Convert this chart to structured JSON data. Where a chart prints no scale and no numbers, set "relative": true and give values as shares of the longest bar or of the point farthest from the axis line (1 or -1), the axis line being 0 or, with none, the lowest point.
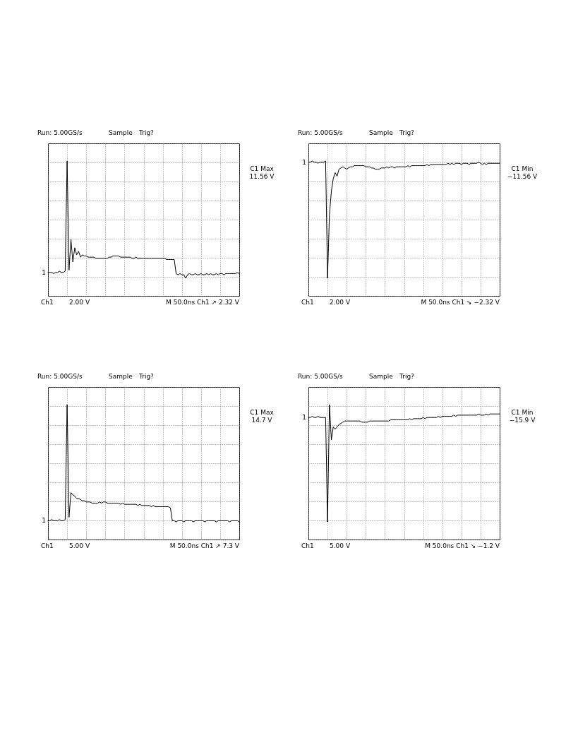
{
  "chart_data": [
    {
      "type": "line",
      "title": "Run: 5.00GS/s",
      "relative": true,
      "grid": true,
      "annotations": [
        "Sample",
        "Trig?",
        "Ch1",
        "2.00 V",
        "M 50.0ns Ch1 ↗ 2.32 V",
        "C1 Max",
        "11.56 V",
        "1"
      ],
      "categories": [
        null,
        null,
        null,
        null,
        null,
        null,
        null,
        null,
        null,
        null,
        null,
        null,
        null,
        null,
        null,
        null,
        null,
        null,
        null,
        null,
        null,
        null,
        null,
        null,
        null,
        null,
        null,
        null,
        null,
        null,
        null,
        null,
        null,
        null,
        null,
        null,
        null,
        null,
        null,
        null,
        null,
        null,
        null,
        null,
        null,
        null,
        null,
        null,
        null,
        null,
        null,
        null,
        null,
        null,
        null,
        null,
        null,
        null,
        null,
        null,
        null,
        null,
        null,
        null,
        null,
        null,
        null,
        null,
        null,
        null,
        null,
        null,
        null,
        null,
        null,
        null,
        null,
        null,
        null,
        null,
        null,
        null,
        null,
        null,
        null,
        null,
        null,
        null,
        null,
        null,
        null,
        null,
        null,
        null,
        null,
        null,
        null,
        null,
        null,
        null,
        null
      ],
      "series": [
        {
          "color": "#000000",
          "values": [
            0.05,
            0.05,
            0.05,
            0.04,
            0.05,
            0.05,
            0.06,
            0.05,
            0.05,
            0.06,
            1,
            0.07,
            0.33,
            0.14,
            0.26,
            0.2,
            0.23,
            0.18,
            0.2,
            0.19,
            0.19,
            0.18,
            0.18,
            0.18,
            0.18,
            0.17,
            0.17,
            0.17,
            0.17,
            0.17,
            0.17,
            0.17,
            0.18,
            0.18,
            0.19,
            0.19,
            0.19,
            0.19,
            0.18,
            0.18,
            0.18,
            0.18,
            0.18,
            0.18,
            0.17,
            0.17,
            0.18,
            0.17,
            0.17,
            0.17,
            0.17,
            0.17,
            0.17,
            0.17,
            0.17,
            0.17,
            0.17,
            0.17,
            0.17,
            0.17,
            0.17,
            0.17,
            0.16,
            0.16,
            0.16,
            0.16,
            0.16,
            0.04,
            0.03,
            0.04,
            0.03,
            0.03,
            0,
            0.03,
            0.04,
            0.03,
            0.03,
            0.04,
            0.03,
            0.03,
            0.04,
            0.03,
            0.03,
            0.04,
            0.03,
            0.04,
            0.03,
            0.03,
            0.04,
            0.03,
            0.04,
            0.04,
            0.03,
            0.04,
            0.04,
            0.04,
            0.04,
            0.04,
            0.04,
            0.05,
            0.04
          ]
        }
      ]
    },
    {
      "type": "line",
      "title": "Run: 5.00GS/s",
      "relative": true,
      "grid": true,
      "annotations": [
        "Sample",
        "Trig?",
        "Ch1",
        "2.00 V",
        "M 50.0ns Ch1 ↘ −2.32 V",
        "C1 Min",
        "−11.56 V",
        "1"
      ],
      "categories": [
        null,
        null,
        null,
        null,
        null,
        null,
        null,
        null,
        null,
        null,
        null,
        null,
        null,
        null,
        null,
        null,
        null,
        null,
        null,
        null,
        null,
        null,
        null,
        null,
        null,
        null,
        null,
        null,
        null,
        null,
        null,
        null,
        null,
        null,
        null,
        null,
        null,
        null,
        null,
        null,
        null,
        null,
        null,
        null,
        null,
        null,
        null,
        null,
        null,
        null,
        null,
        null,
        null,
        null,
        null,
        null,
        null,
        null,
        null,
        null,
        null,
        null,
        null,
        null,
        null,
        null,
        null,
        null,
        null,
        null,
        null,
        null,
        null,
        null,
        null,
        null,
        null,
        null,
        null,
        null,
        null,
        null,
        null,
        null,
        null,
        null,
        null,
        null,
        null,
        null,
        null,
        null,
        null,
        null,
        null,
        null,
        null,
        null,
        null,
        null,
        null
      ],
      "series": [
        {
          "color": "#000000",
          "values": [
            0.99,
            0.99,
            1,
            0.99,
            0.99,
            0.98,
            0.99,
            0.99,
            0.99,
            1,
            0,
            0.54,
            0.74,
            0.85,
            0.9,
            0.87,
            0.93,
            0.94,
            0.95,
            0.94,
            0.93,
            0.94,
            0.95,
            0.95,
            0.96,
            0.96,
            0.96,
            0.96,
            0.96,
            0.96,
            0.95,
            0.95,
            0.95,
            0.94,
            0.94,
            0.93,
            0.93,
            0.93,
            0.94,
            0.94,
            0.94,
            0.95,
            0.94,
            0.95,
            0.95,
            0.94,
            0.95,
            0.95,
            0.95,
            0.95,
            0.95,
            0.95,
            0.96,
            0.95,
            0.96,
            0.96,
            0.96,
            0.96,
            0.96,
            0.96,
            0.96,
            0.96,
            0.97,
            0.96,
            0.97,
            0.97,
            0.97,
            0.97,
            0.97,
            0.97,
            0.97,
            0.97,
            0.97,
            0.98,
            0.97,
            0.98,
            0.97,
            0.98,
            0.98,
            0.98,
            0.97,
            0.98,
            0.98,
            0.98,
            0.97,
            0.98,
            0.98,
            0.98,
            0.98,
            0.99,
            0.98,
            0.97,
            0.98,
            0.97,
            0.98,
            0.98,
            0.98,
            0.98,
            0.98,
            0.98,
            0.98
          ]
        }
      ]
    },
    {
      "type": "line",
      "title": "Run: 5.00GS/s",
      "relative": true,
      "grid": true,
      "annotations": [
        "Sample",
        "Trig?",
        "Ch1",
        "5.00 V",
        "M 50.0ns Ch1 ↗ 7.3 V",
        "C1 Max",
        "14.7 V",
        "1"
      ],
      "categories": [
        null,
        null,
        null,
        null,
        null,
        null,
        null,
        null,
        null,
        null,
        null,
        null,
        null,
        null,
        null,
        null,
        null,
        null,
        null,
        null,
        null,
        null,
        null,
        null,
        null,
        null,
        null,
        null,
        null,
        null,
        null,
        null,
        null,
        null,
        null,
        null,
        null,
        null,
        null,
        null,
        null,
        null,
        null,
        null,
        null,
        null,
        null,
        null,
        null,
        null,
        null,
        null,
        null,
        null,
        null,
        null,
        null,
        null,
        null,
        null,
        null,
        null,
        null,
        null,
        null,
        null,
        null,
        null,
        null,
        null,
        null,
        null,
        null,
        null,
        null,
        null,
        null,
        null,
        null,
        null,
        null,
        null,
        null,
        null,
        null,
        null,
        null,
        null,
        null,
        null,
        null,
        null,
        null,
        null,
        null,
        null,
        null,
        null,
        null,
        null,
        null
      ],
      "series": [
        {
          "color": "#000000",
          "values": [
            0.01,
            0.01,
            0.02,
            0.01,
            0.01,
            0.01,
            0.02,
            0.01,
            0.01,
            0.02,
            1,
            0.04,
            0.25,
            0.23,
            0.22,
            0.2,
            0.2,
            0.19,
            0.18,
            0.18,
            0.17,
            0.17,
            0.17,
            0.16,
            0.16,
            0.16,
            0.16,
            0.17,
            0.16,
            0.17,
            0.17,
            0.16,
            0.16,
            0.16,
            0.16,
            0.16,
            0.16,
            0.16,
            0.15,
            0.16,
            0.15,
            0.15,
            0.15,
            0.15,
            0.15,
            0.15,
            0.15,
            0.14,
            0.15,
            0.14,
            0.14,
            0.14,
            0.14,
            0.14,
            0.13,
            0.14,
            0.13,
            0.13,
            0.13,
            0.13,
            0.13,
            0.13,
            0.13,
            0.13,
            0.12,
            0.01,
            0.01,
            0,
            0.01,
            0.01,
            0.01,
            0,
            0.01,
            0.01,
            0.01,
            0.01,
            0,
            0.01,
            0.01,
            0.01,
            0.01,
            0.01,
            0,
            0.01,
            0.01,
            0.01,
            0.01,
            0.01,
            0,
            0.01,
            0.01,
            0.01,
            0.01,
            0.01,
            0.01,
            0,
            0.01,
            0.01,
            0.01,
            0.01,
            0
          ]
        }
      ]
    },
    {
      "type": "line",
      "title": "Run: 5.00GS/s",
      "relative": true,
      "grid": true,
      "annotations": [
        "Sample",
        "Trig?",
        "Ch1",
        "5.00 V",
        "M 50.0ns Ch1 ↘ −1.2 V",
        "C1 Min",
        "−15.9 V",
        "1"
      ],
      "categories": [
        null,
        null,
        null,
        null,
        null,
        null,
        null,
        null,
        null,
        null,
        null,
        null,
        null,
        null,
        null,
        null,
        null,
        null,
        null,
        null,
        null,
        null,
        null,
        null,
        null,
        null,
        null,
        null,
        null,
        null,
        null,
        null,
        null,
        null,
        null,
        null,
        null,
        null,
        null,
        null,
        null,
        null,
        null,
        null,
        null,
        null,
        null,
        null,
        null,
        null,
        null,
        null,
        null,
        null,
        null,
        null,
        null,
        null,
        null,
        null,
        null,
        null,
        null,
        null,
        null,
        null,
        null,
        null,
        null,
        null,
        null,
        null,
        null,
        null,
        null,
        null,
        null,
        null,
        null,
        null,
        null,
        null,
        null,
        null,
        null,
        null,
        null,
        null,
        null,
        null,
        null,
        null,
        null,
        null,
        null,
        null,
        null,
        null,
        null,
        null,
        null
      ],
      "series": [
        {
          "color": "#000000",
          "values": [
            0.89,
            0.89,
            0.9,
            0.89,
            0.89,
            0.9,
            0.89,
            0.89,
            0.89,
            0.89,
            0,
            1,
            0.7,
            0.81,
            0.79,
            0.81,
            0.83,
            0.84,
            0.85,
            0.86,
            0.86,
            0.86,
            0.86,
            0.86,
            0.86,
            0.86,
            0.86,
            0.86,
            0.85,
            0.85,
            0.85,
            0.85,
            0.86,
            0.86,
            0.86,
            0.86,
            0.86,
            0.86,
            0.86,
            0.86,
            0.86,
            0.86,
            0.86,
            0.87,
            0.87,
            0.87,
            0.87,
            0.87,
            0.87,
            0.87,
            0.87,
            0.87,
            0.87,
            0.88,
            0.87,
            0.88,
            0.88,
            0.88,
            0.88,
            0.88,
            0.89,
            0.88,
            0.89,
            0.89,
            0.89,
            0.89,
            0.89,
            0.89,
            0.9,
            0.89,
            0.9,
            0.9,
            0.9,
            0.9,
            0.9,
            0.9,
            0.91,
            0.9,
            0.91,
            0.91,
            0.91,
            0.91,
            0.91,
            0.91,
            0.91,
            0.91,
            0.91,
            0.91,
            0.91,
            0.92,
            0.91,
            0.91,
            0.91,
            0.92,
            0.91,
            0.92,
            0.92,
            0.92,
            0.92,
            0.92,
            0.92
          ]
        }
      ]
    }
  ]
}
